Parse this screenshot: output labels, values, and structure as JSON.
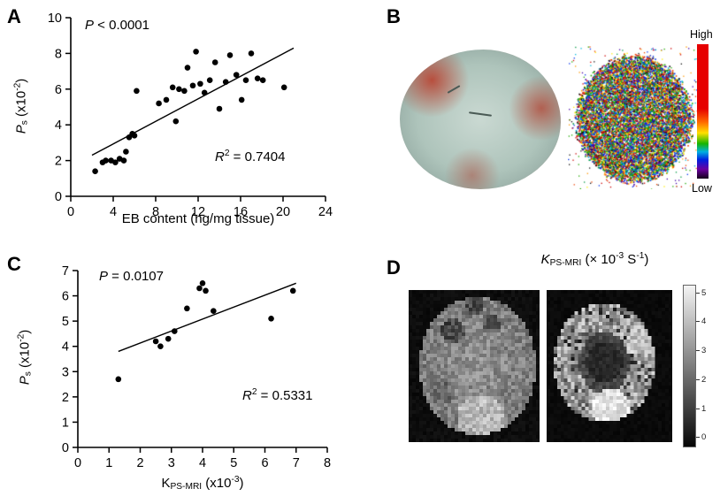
{
  "figure": {
    "panels": {
      "a": {
        "label": "A"
      },
      "b": {
        "label": "B",
        "colorbar_high": "High",
        "colorbar_low": "Low"
      },
      "c": {
        "label": "C"
      },
      "d": {
        "label": "D",
        "title_parts": {
          "var": "K",
          "sub": "PS-MRI",
          "mid": " (× 10",
          "sup1": "-3",
          "mid2": " S",
          "sup2": "-1",
          "end": ")"
        },
        "colorbar_ticks": [
          "5",
          "4",
          "3",
          "2",
          "1",
          "0"
        ]
      }
    }
  },
  "chart_data": [
    {
      "type": "scatter",
      "panel": "A",
      "title": "",
      "xlabel": "EB content (ng/mg tissue)",
      "ylabel": "Ps (x10-2)",
      "ylabel_parts": {
        "var": "P",
        "sub": "s",
        "mid": " (x10",
        "sup": "-2",
        "end": ")"
      },
      "xlim": [
        0,
        24
      ],
      "ylim": [
        0,
        10
      ],
      "xticks": [
        0,
        4,
        8,
        12,
        16,
        20,
        24
      ],
      "yticks": [
        0,
        2,
        4,
        6,
        8,
        10
      ],
      "grid": false,
      "points": [
        [
          2.3,
          1.4
        ],
        [
          3.0,
          1.9
        ],
        [
          3.3,
          2.0
        ],
        [
          3.8,
          2.0
        ],
        [
          4.2,
          1.9
        ],
        [
          4.6,
          2.1
        ],
        [
          5.0,
          2.0
        ],
        [
          5.2,
          2.5
        ],
        [
          5.5,
          3.3
        ],
        [
          5.8,
          3.5
        ],
        [
          6.0,
          3.4
        ],
        [
          6.2,
          5.9
        ],
        [
          8.3,
          5.2
        ],
        [
          9.0,
          5.4
        ],
        [
          9.6,
          6.1
        ],
        [
          9.9,
          4.2
        ],
        [
          10.2,
          6.0
        ],
        [
          10.7,
          5.9
        ],
        [
          11.0,
          7.2
        ],
        [
          11.5,
          6.2
        ],
        [
          11.8,
          8.1
        ],
        [
          12.2,
          6.3
        ],
        [
          12.6,
          5.8
        ],
        [
          13.1,
          6.5
        ],
        [
          13.6,
          7.5
        ],
        [
          14.0,
          4.9
        ],
        [
          14.6,
          6.4
        ],
        [
          15.0,
          7.9
        ],
        [
          15.6,
          6.8
        ],
        [
          16.1,
          5.4
        ],
        [
          16.5,
          6.5
        ],
        [
          17.0,
          8.0
        ],
        [
          17.6,
          6.6
        ],
        [
          18.1,
          6.5
        ],
        [
          20.1,
          6.1
        ]
      ],
      "trendline": {
        "x": [
          2.0,
          21.0
        ],
        "y": [
          2.3,
          8.3
        ]
      },
      "annotations": {
        "p_var": "P",
        "p_rest": " < 0.0001",
        "p_text": "P < 0.0001",
        "r_var": "R",
        "r_sup": "2",
        "r_rest": " = 0.7404",
        "r_squared": 0.7404
      }
    },
    {
      "type": "scatter",
      "panel": "C",
      "title": "",
      "xlabel": "KPS-MRI (x10-3)",
      "xlabel_parts": {
        "main": "K",
        "sub": "PS-MRI",
        "mid": " (x10",
        "sup": "-3",
        "end": ")"
      },
      "ylabel": "Ps (x10-2)",
      "ylabel_parts": {
        "var": "P",
        "sub": "s",
        "mid": " (x10",
        "sup": "-2",
        "end": ")"
      },
      "xlim": [
        0,
        8
      ],
      "ylim": [
        0,
        7
      ],
      "xticks": [
        0,
        1,
        2,
        3,
        4,
        5,
        6,
        7,
        8
      ],
      "yticks": [
        0,
        1,
        2,
        3,
        4,
        5,
        6,
        7
      ],
      "grid": false,
      "points": [
        [
          1.3,
          2.7
        ],
        [
          2.5,
          4.2
        ],
        [
          2.65,
          4.0
        ],
        [
          2.9,
          4.3
        ],
        [
          3.1,
          4.6
        ],
        [
          3.5,
          5.5
        ],
        [
          3.9,
          6.3
        ],
        [
          4.0,
          6.5
        ],
        [
          4.1,
          6.2
        ],
        [
          4.35,
          5.4
        ],
        [
          6.2,
          5.1
        ],
        [
          6.9,
          6.2
        ]
      ],
      "trendline": {
        "x": [
          1.3,
          7.0
        ],
        "y": [
          3.8,
          6.5
        ]
      },
      "annotations": {
        "p_var": "P",
        "p_rest": " = 0.0107",
        "p_text": "P = 0.0107",
        "r_var": "R",
        "r_sup": "2",
        "r_rest": " = 0.5331",
        "r_squared": 0.5331
      }
    }
  ]
}
